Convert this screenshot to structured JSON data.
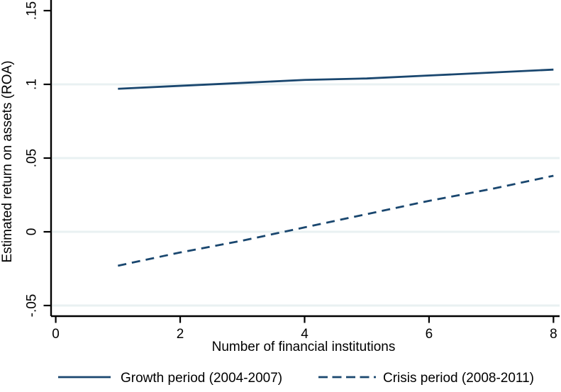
{
  "chart_data": {
    "type": "line",
    "title": "",
    "xlabel": "Number of financial institutions",
    "ylabel": "Estimated return on assets (ROA)",
    "x": [
      1,
      2,
      3,
      4,
      5,
      6,
      7,
      8
    ],
    "series": [
      {
        "name": "Growth period (2004-2007)",
        "line_style": "solid",
        "values": [
          0.097,
          0.099,
          0.101,
          0.103,
          0.104,
          0.106,
          0.108,
          0.11
        ]
      },
      {
        "name": "Crisis period (2008-2011)",
        "line_style": "dashed",
        "values": [
          -0.023,
          -0.014,
          -0.006,
          0.003,
          0.012,
          0.021,
          0.029,
          0.038
        ]
      }
    ],
    "x_ticks": [
      {
        "value": 0,
        "label": "0"
      },
      {
        "value": 2,
        "label": "2"
      },
      {
        "value": 4,
        "label": "4"
      },
      {
        "value": 6,
        "label": "6"
      },
      {
        "value": 8,
        "label": "8"
      }
    ],
    "y_ticks": [
      {
        "value": -0.05,
        "label": "-.05",
        "grid": true
      },
      {
        "value": 0,
        "label": "0",
        "grid": true
      },
      {
        "value": 0.05,
        "label": ".05",
        "grid": true
      },
      {
        "value": 0.1,
        "label": ".1",
        "grid": true
      },
      {
        "value": 0.15,
        "label": ".15",
        "grid": false
      }
    ],
    "xlim": [
      -0.08,
      8.1
    ],
    "ylim": [
      -0.057,
      0.157
    ],
    "grid": "horizontal",
    "legend_position": "bottom",
    "line_color": "#1a476f",
    "grid_color": "#e9f1f2",
    "axis_color": "#000000",
    "background_color": "#ffffff"
  }
}
